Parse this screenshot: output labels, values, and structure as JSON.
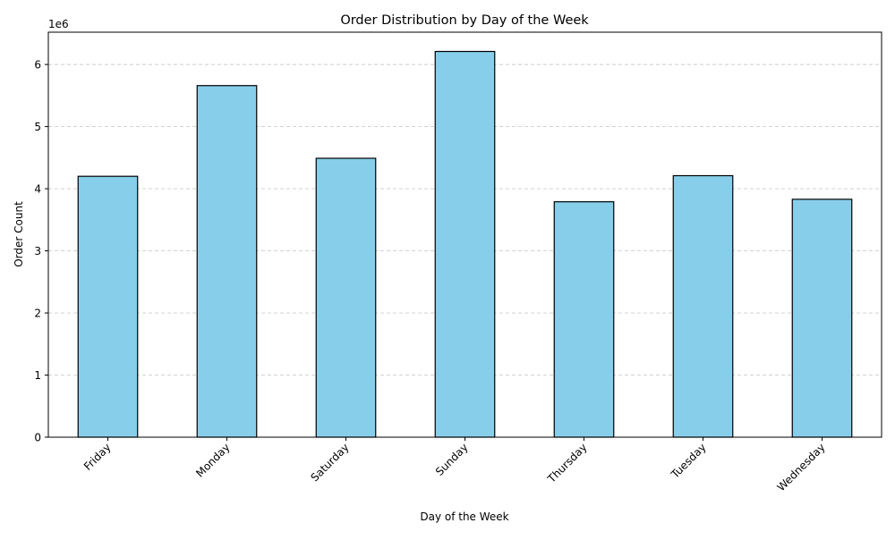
{
  "chart_data": {
    "type": "bar",
    "title": "Order Distribution by Day of the Week",
    "xlabel": "Day of the Week",
    "ylabel": "Order Count",
    "y_offset_label": "1e6",
    "categories": [
      "Friday",
      "Monday",
      "Saturday",
      "Sunday",
      "Thursday",
      "Tuesday",
      "Wednesday"
    ],
    "values": [
      4200000,
      5660000,
      4490000,
      6210000,
      3790000,
      4210000,
      3830000
    ],
    "y_ticks": [
      0,
      1,
      2,
      3,
      4,
      5,
      6
    ],
    "ylim": [
      0,
      6520000
    ],
    "grid": "y, dashed",
    "bar_color": "#87CEEB",
    "bar_edge_color": "#000000",
    "grid_color": "#cccccc"
  }
}
